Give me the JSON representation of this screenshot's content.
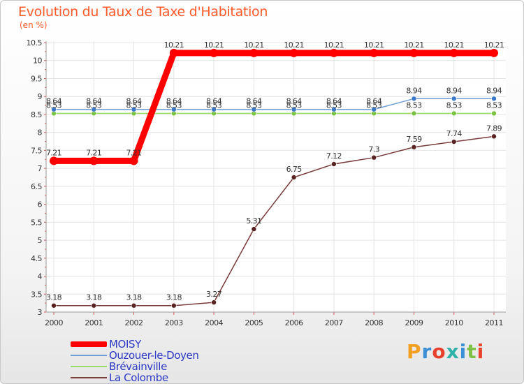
{
  "chart_data": {
    "type": "line",
    "title": "Evolution du Taux de Taxe d'Habitation",
    "ylabel": "(en %)",
    "xlabel": "",
    "ylim": [
      3,
      10.5
    ],
    "yticks": [
      "3",
      "3.5",
      "4",
      "4.5",
      "5",
      "5.5",
      "6",
      "6.5",
      "7",
      "7.5",
      "8",
      "8.5",
      "9",
      "9.5",
      "10",
      "10.5"
    ],
    "categories": [
      "2000",
      "2001",
      "2002",
      "2003",
      "2004",
      "2005",
      "2006",
      "2007",
      "2008",
      "2009",
      "2010",
      "2011"
    ],
    "series": [
      {
        "name": "MOISY",
        "color": "#ff0000",
        "values": [
          7.21,
          7.21,
          7.21,
          10.21,
          10.21,
          10.21,
          10.21,
          10.21,
          10.21,
          10.21,
          10.21,
          10.21
        ],
        "labels": [
          "7.21",
          "7.21",
          "7.21",
          "10.21",
          "10.21",
          "10.21",
          "10.21",
          "10.21",
          "10.21",
          "10.21",
          "10.21",
          "10.21"
        ]
      },
      {
        "name": "Ouzouer-le-Doyen",
        "color": "#6f9fd8",
        "values": [
          8.64,
          8.64,
          8.64,
          8.64,
          8.64,
          8.64,
          8.64,
          8.64,
          8.64,
          8.94,
          8.94,
          8.94
        ],
        "labels": [
          "8.64",
          "8.64",
          "8.64",
          "8.64",
          "8.64",
          "8.64",
          "8.64",
          "8.64",
          "8.64",
          "8.94",
          "8.94",
          "8.94"
        ]
      },
      {
        "name": "Brévainville",
        "color": "#99dd66",
        "values": [
          8.53,
          8.53,
          8.53,
          8.53,
          8.53,
          8.53,
          8.53,
          8.53,
          8.53,
          8.53,
          8.53,
          8.53
        ],
        "labels": [
          "8.53",
          "8.53",
          "8.53",
          "8.53",
          "8.53",
          "8.53",
          "8.53",
          "8.53",
          "8.53",
          "8.53",
          "8.53",
          "8.53"
        ]
      },
      {
        "name": "La Colombe",
        "color": "#7a3b3b",
        "values": [
          3.18,
          3.18,
          3.18,
          3.18,
          3.27,
          5.31,
          6.75,
          7.12,
          7.3,
          7.59,
          7.74,
          7.89
        ],
        "labels": [
          "3.18",
          "3.18",
          "3.18",
          "3.18",
          "3.27",
          "5.31",
          "6.75",
          "7.12",
          "7.3",
          "7.59",
          "7.74",
          "7.89"
        ]
      }
    ]
  },
  "branding": {
    "logo_text": "Proxiti",
    "logo_colors": [
      "#f2a024",
      "#3a8fd6",
      "#e8402c",
      "#2fb3a8",
      "#3a8fd6",
      "#7dc242",
      "#e8402c"
    ]
  }
}
